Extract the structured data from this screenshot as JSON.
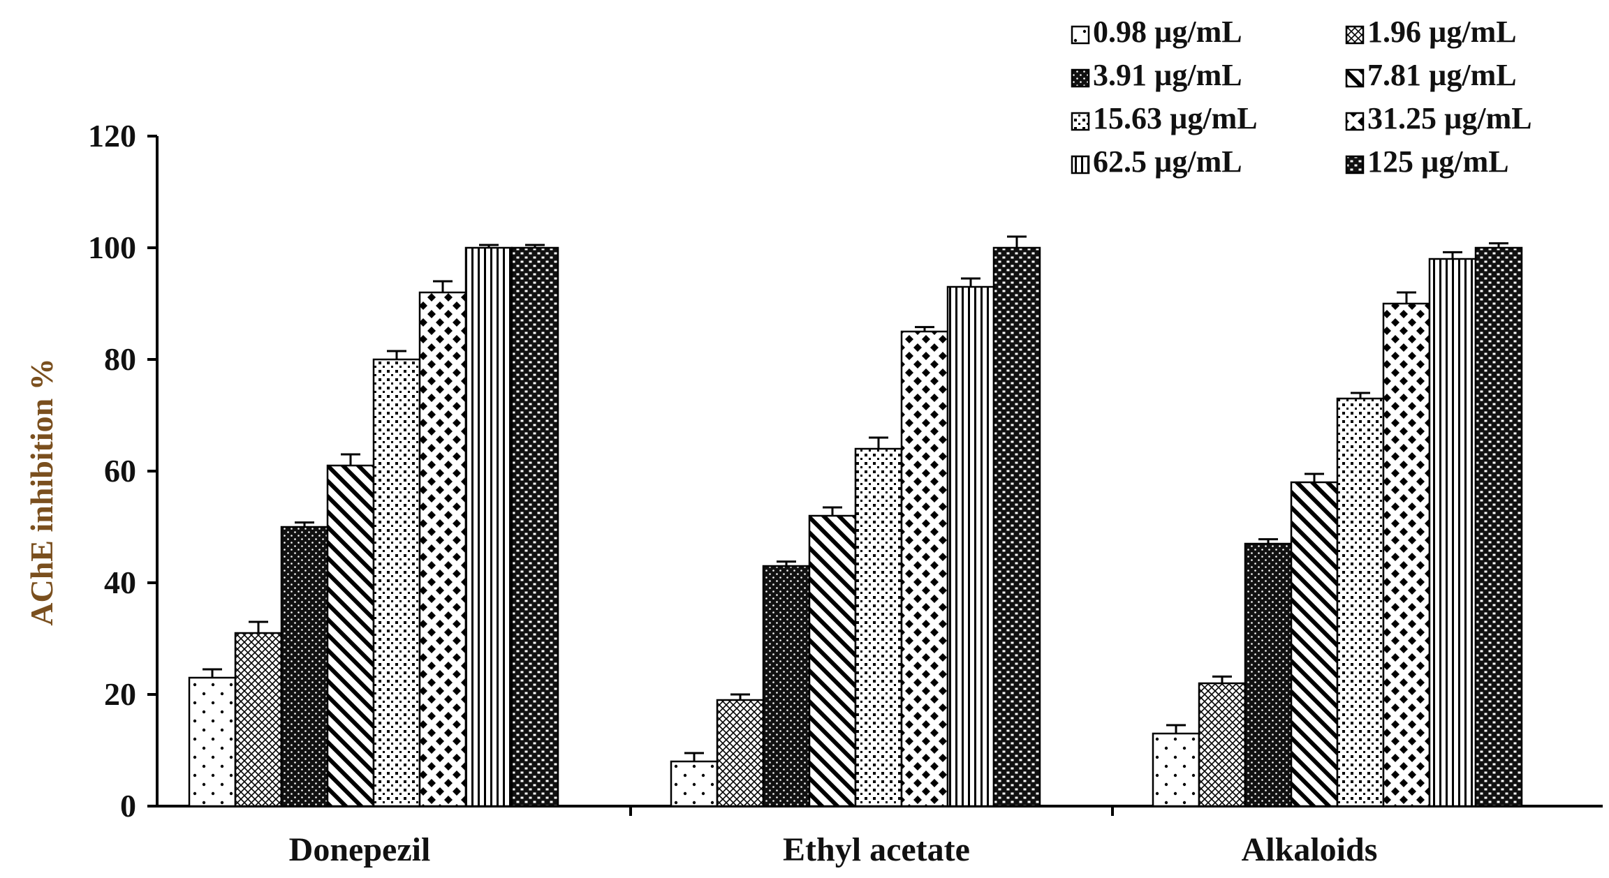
{
  "chart_data": {
    "type": "bar",
    "title": "",
    "xlabel": "",
    "ylabel": "AChE inhibition %",
    "ylim": [
      0,
      120
    ],
    "yticks": [
      0,
      20,
      40,
      60,
      80,
      100,
      120
    ],
    "categories": [
      "Donepezil",
      "Ethyl acetate",
      "Alkaloids"
    ],
    "legend_position": "top-right",
    "grid": false,
    "series": [
      {
        "name": "0.98 µg/mL",
        "pattern": "dots-sparse",
        "values": [
          23,
          8,
          13
        ],
        "errors": [
          1.5,
          1.5,
          1.5
        ]
      },
      {
        "name": "1.96 µg/mL",
        "pattern": "crosshatch",
        "values": [
          31,
          19,
          22
        ],
        "errors": [
          2.0,
          1.0,
          1.2
        ]
      },
      {
        "name": "3.91 µg/mL",
        "pattern": "dense-dark",
        "values": [
          50,
          43,
          47
        ],
        "errors": [
          0.8,
          0.8,
          0.8
        ]
      },
      {
        "name": "7.81 µg/mL",
        "pattern": "diag-bold",
        "values": [
          61,
          52,
          58
        ],
        "errors": [
          2.0,
          1.5,
          1.5
        ]
      },
      {
        "name": "15.63 µg/mL",
        "pattern": "dots-dense",
        "values": [
          80,
          64,
          73
        ],
        "errors": [
          1.5,
          2.0,
          1.0
        ]
      },
      {
        "name": "31.25 µg/mL",
        "pattern": "diamonds",
        "values": [
          92,
          85,
          90
        ],
        "errors": [
          2.0,
          0.8,
          2.0
        ]
      },
      {
        "name": "62.5 µg/mL",
        "pattern": "vlines",
        "values": [
          100,
          93,
          98
        ],
        "errors": [
          0.5,
          1.5,
          1.2
        ]
      },
      {
        "name": "125 µg/mL",
        "pattern": "checker",
        "values": [
          100,
          100,
          100
        ],
        "errors": [
          0.5,
          2.0,
          0.8
        ]
      }
    ]
  }
}
